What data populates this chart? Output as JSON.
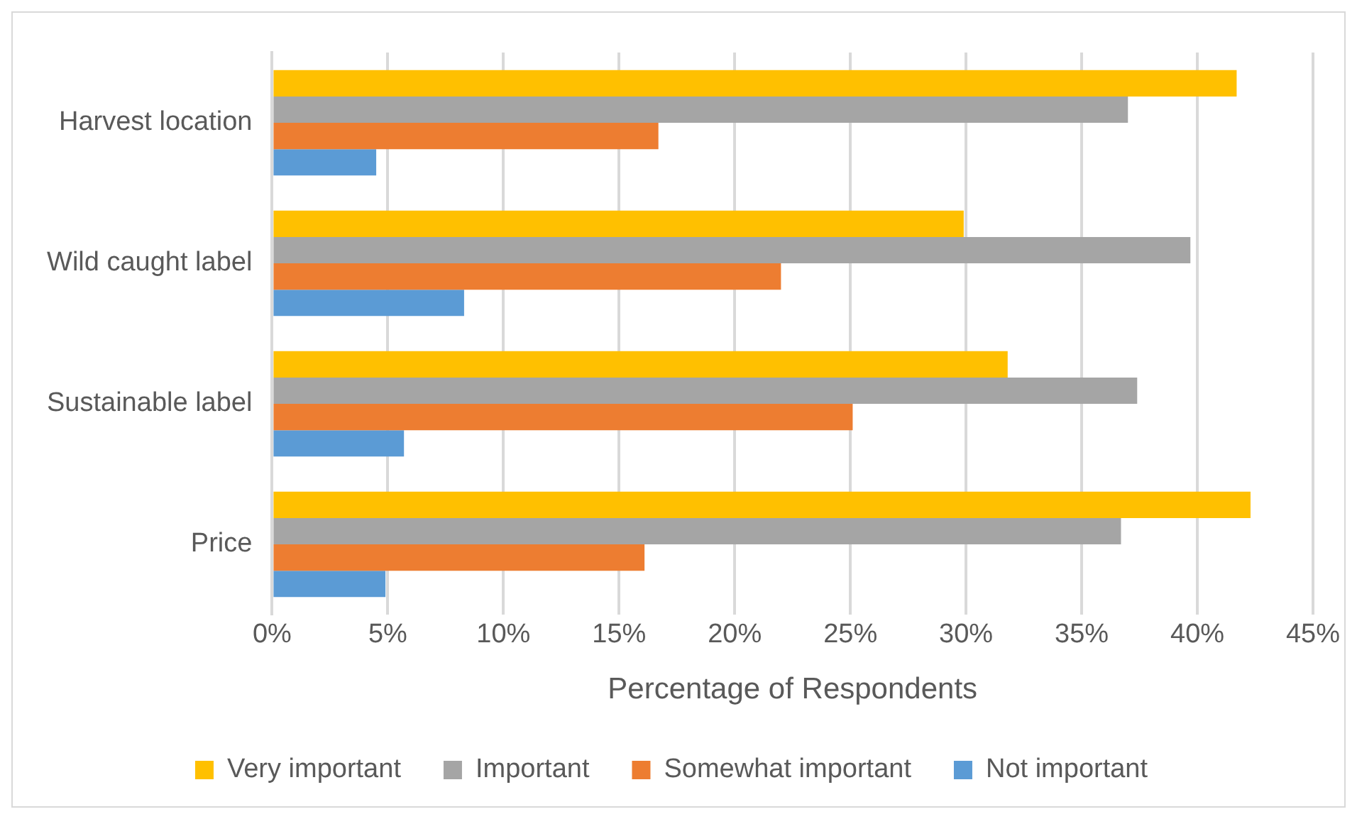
{
  "chart_data": {
    "type": "bar",
    "orientation": "horizontal",
    "categories": [
      "Harvest location",
      "Wild caught label",
      "Sustainable label",
      "Price"
    ],
    "series": [
      {
        "name": "Very important",
        "color": "#ffc000",
        "values": [
          41.7,
          29.9,
          31.8,
          42.3
        ]
      },
      {
        "name": "Important",
        "color": "#a5a5a5",
        "values": [
          37.0,
          39.7,
          37.4,
          36.7
        ]
      },
      {
        "name": "Somewhat important",
        "color": "#ed7d31",
        "values": [
          16.7,
          22.0,
          25.1,
          16.1
        ]
      },
      {
        "name": "Not important",
        "color": "#5b9bd5",
        "values": [
          4.5,
          8.3,
          5.7,
          4.9
        ]
      }
    ],
    "xlabel": "Percentage of Respondents",
    "xlim": [
      0,
      45
    ],
    "xticks": [
      {
        "value": 0,
        "label": "0%"
      },
      {
        "value": 5,
        "label": "5%"
      },
      {
        "value": 10,
        "label": "10%"
      },
      {
        "value": 15,
        "label": "15%"
      },
      {
        "value": 20,
        "label": "20%"
      },
      {
        "value": 25,
        "label": "25%"
      },
      {
        "value": 30,
        "label": "30%"
      },
      {
        "value": 35,
        "label": "35%"
      },
      {
        "value": 40,
        "label": "40%"
      },
      {
        "value": 45,
        "label": "45%"
      }
    ],
    "grid": "x",
    "legend": "bottom"
  }
}
